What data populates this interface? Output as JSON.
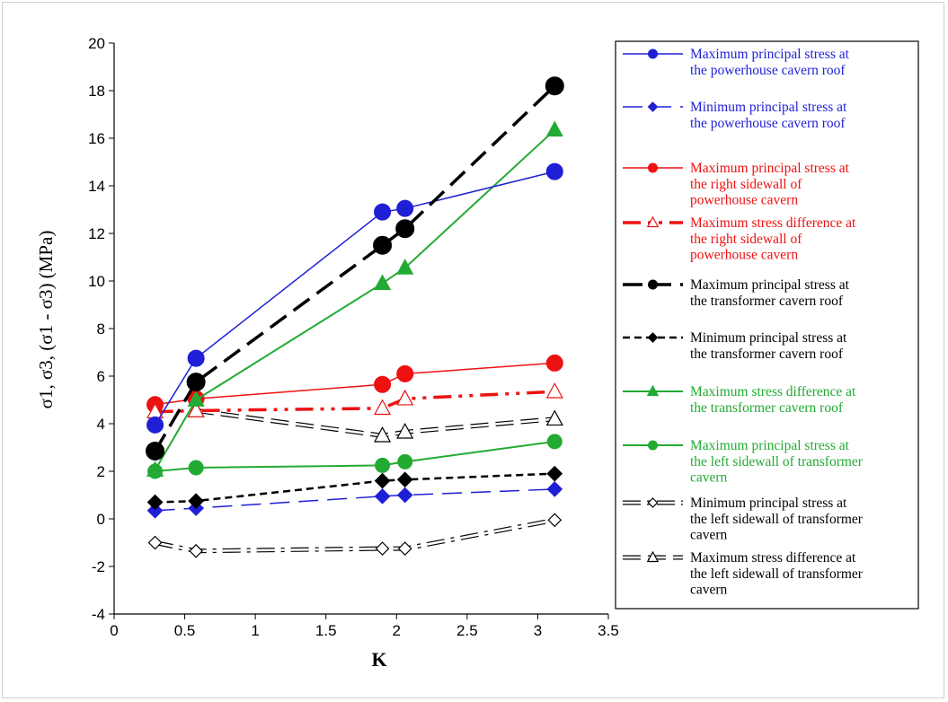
{
  "chart_data": {
    "type": "line",
    "xlabel": "K",
    "ylabel": "σ1, σ3, (σ1 - σ3) (MPa)",
    "xlim": [
      0,
      3.5
    ],
    "ylim": [
      -4,
      20
    ],
    "x_ticks": [
      "0",
      "0.5",
      "1",
      "1.5",
      "2",
      "2.5",
      "3",
      "3.5"
    ],
    "y_ticks": [
      "-4",
      "-2",
      "0",
      "2",
      "4",
      "6",
      "8",
      "10",
      "12",
      "14",
      "16",
      "18",
      "20"
    ],
    "legend_position": "right",
    "grid": false,
    "x": [
      0.29,
      0.58,
      1.9,
      2.06,
      3.12
    ],
    "series": [
      {
        "name": "Maximum principal stress at the powerhouse cavern roof",
        "legend_lines": [
          "Maximum principal stress at",
          "the powerhouse cavern roof"
        ],
        "values": [
          3.95,
          6.75,
          12.9,
          13.05,
          14.6
        ],
        "color": "#1f1fd6",
        "text_color": "#1f1fd6",
        "dash": "solid",
        "marker": "circle-filled",
        "line_width": 1.5
      },
      {
        "name": "Minimum principal stress at the powerhouse cavern roof",
        "legend_lines": [
          "Minimum principal stress at",
          "the powerhouse cavern roof"
        ],
        "values": [
          0.35,
          0.45,
          0.95,
          1.0,
          1.25
        ],
        "color": "#1f1fd6",
        "text_color": "#1f1fd6",
        "dash": "long-dash",
        "marker": "diamond-filled",
        "line_width": 1.5
      },
      {
        "name": "Maximum principal stress at the right sidewall of powerhouse cavern",
        "legend_lines": [
          "Maximum principal stress at",
          "the right sidewall of",
          "powerhouse cavern"
        ],
        "values": [
          4.8,
          5.05,
          5.65,
          6.1,
          6.55
        ],
        "color": "#ee1111",
        "text_color": "#ee1111",
        "dash": "solid",
        "marker": "circle-filled",
        "line_width": 1.5
      },
      {
        "name": "Maximum stress difference at the right sidewall of powerhouse cavern",
        "legend_lines": [
          "Maximum stress difference at",
          "the right sidewall of",
          "powerhouse cavern"
        ],
        "values": [
          4.5,
          4.55,
          4.65,
          5.05,
          5.35
        ],
        "color": "#ee1111",
        "text_color": "#ee1111",
        "dash": "dash-dot-dot",
        "marker": "triangle-open",
        "line_width": 3.5
      },
      {
        "name": "Maximum principal stress at the transformer cavern roof",
        "legend_lines": [
          "Maximum principal stress at",
          "the transformer cavern roof"
        ],
        "values": [
          2.85,
          5.75,
          11.5,
          12.2,
          18.2
        ],
        "color": "#000000",
        "text_color": "#000000",
        "dash": "long-dash",
        "marker": "circle-filled",
        "line_width": 3.5
      },
      {
        "name": "Minimum principal stress at the transformer cavern roof",
        "legend_lines": [
          "Minimum principal stress at",
          "the transformer cavern roof"
        ],
        "values": [
          0.7,
          0.75,
          1.6,
          1.65,
          1.9
        ],
        "color": "#000000",
        "text_color": "#000000",
        "dash": "short-dash",
        "marker": "diamond-filled",
        "line_width": 2.5
      },
      {
        "name": "Maximum stress difference at the transformer cavern roof",
        "legend_lines": [
          "Maximum stress difference at",
          "the transformer cavern roof"
        ],
        "values": [
          2.05,
          5.0,
          9.9,
          10.55,
          16.35
        ],
        "color": "#22aa33",
        "text_color": "#22aa33",
        "dash": "solid",
        "marker": "triangle-filled",
        "line_width": 2
      },
      {
        "name": "Maximum principal stress at the left sidewall of transformer cavern",
        "legend_lines": [
          "Maximum principal stress at",
          "the left sidewall of transformer",
          "cavern"
        ],
        "values": [
          2.0,
          2.15,
          2.25,
          2.4,
          3.25
        ],
        "color": "#22aa33",
        "text_color": "#22aa33",
        "dash": "solid",
        "marker": "circle-filled",
        "line_width": 2
      },
      {
        "name": "Minimum principal stress at the left sidewall of transformer cavern",
        "legend_lines": [
          "Minimum principal stress at",
          "the left sidewall of transformer",
          "cavern"
        ],
        "values": [
          -1.0,
          -1.35,
          -1.25,
          -1.25,
          -0.05
        ],
        "color": "#000000",
        "text_color": "#000000",
        "dash": "outline-dashdot",
        "marker": "diamond-open",
        "line_width": 1.5
      },
      {
        "name": "Maximum stress difference at the left sidewall of transformer cavern",
        "legend_lines": [
          "Maximum stress difference at",
          "the left sidewall of transformer",
          "cavern"
        ],
        "values": [
          null,
          4.55,
          3.5,
          3.65,
          4.2
        ],
        "color": "#000000",
        "text_color": "#000000",
        "dash": "outline-dash",
        "marker": "triangle-open",
        "line_width": 1.5
      }
    ]
  }
}
